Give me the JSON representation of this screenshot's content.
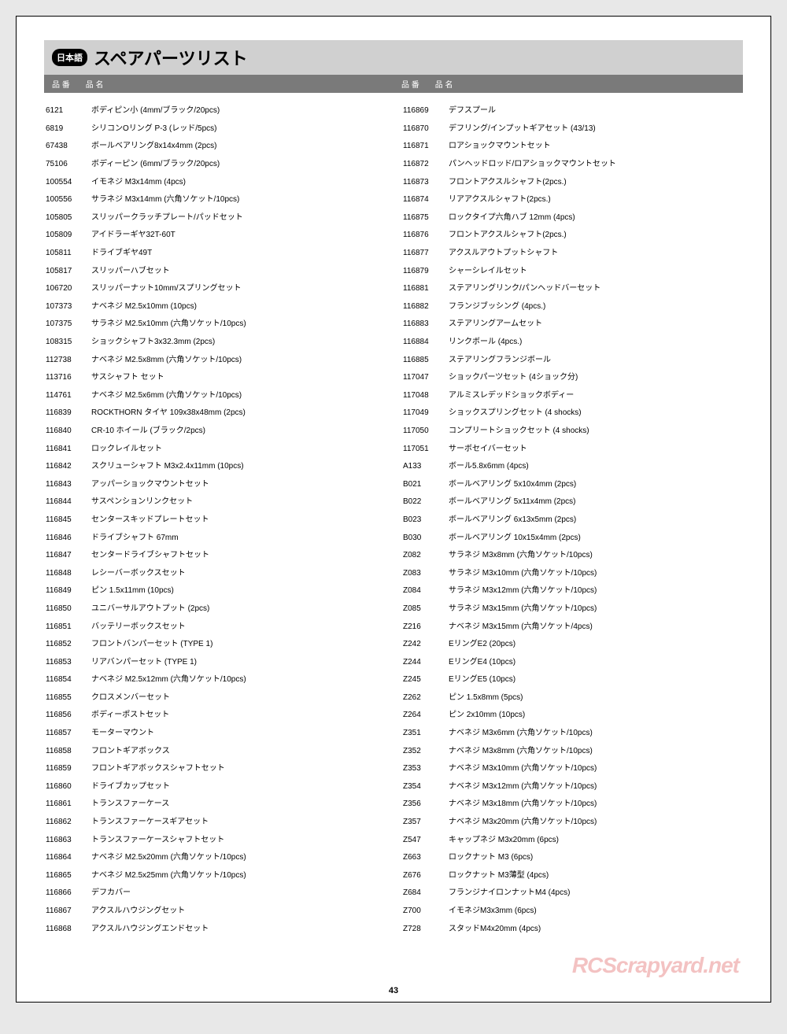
{
  "page": {
    "background_color": "#e8e8e8",
    "paper_color": "#ffffff",
    "title_bg": "#d0d0d0",
    "header_bg": "#7a7a7a",
    "text_color": "#000000",
    "header_text_color": "#ffffff",
    "font_family": "Hiragino Kaku Gothic Pro",
    "title_fontsize": 22,
    "body_fontsize": 10,
    "page_number": "43",
    "watermark": "RCScrapyard.net",
    "watermark_color": "rgba(220,80,80,0.35)"
  },
  "title": {
    "lang_badge": "日本語",
    "text": "スペアパーツリスト"
  },
  "headers": {
    "num": "品 番",
    "name": "品 名"
  },
  "left_parts": [
    {
      "num": "6121",
      "name": "ボディピン小 (4mm/ブラック/20pcs)"
    },
    {
      "num": "6819",
      "name": "シリコンOリング P-3 (レッド/5pcs)"
    },
    {
      "num": "67438",
      "name": "ボールベアリング8x14x4mm (2pcs)"
    },
    {
      "num": "75106",
      "name": "ボディーピン (6mm/ブラック/20pcs)"
    },
    {
      "num": "100554",
      "name": "イモネジ M3x14mm (4pcs)"
    },
    {
      "num": "100556",
      "name": "サラネジ M3x14mm (六角ソケット/10pcs)"
    },
    {
      "num": "105805",
      "name": "スリッパークラッチプレート/パッドセット"
    },
    {
      "num": "105809",
      "name": "アイドラーギヤ32T-60T"
    },
    {
      "num": "105811",
      "name": "ドライブギヤ49T"
    },
    {
      "num": "105817",
      "name": "スリッパーハブセット"
    },
    {
      "num": "106720",
      "name": "スリッパーナット10mm/スプリングセット"
    },
    {
      "num": "107373",
      "name": "ナベネジ M2.5x10mm (10pcs)"
    },
    {
      "num": "107375",
      "name": "サラネジ M2.5x10mm (六角ソケット/10pcs)"
    },
    {
      "num": "108315",
      "name": "ショックシャフト3x32.3mm (2pcs)"
    },
    {
      "num": "112738",
      "name": "ナベネジ M2.5x8mm (六角ソケット/10pcs)"
    },
    {
      "num": "113716",
      "name": "サスシャフト セット"
    },
    {
      "num": "114761",
      "name": "ナベネジ M2.5x6mm (六角ソケット/10pcs)"
    },
    {
      "num": "116839",
      "name": "ROCKTHORN タイヤ 109x38x48mm (2pcs)"
    },
    {
      "num": "116840",
      "name": "CR-10 ホイール (ブラック/2pcs)"
    },
    {
      "num": "116841",
      "name": "ロックレイルセット"
    },
    {
      "num": "116842",
      "name": "スクリューシャフト M3x2.4x11mm (10pcs)"
    },
    {
      "num": "116843",
      "name": "アッパーショックマウントセット"
    },
    {
      "num": "116844",
      "name": "サスペンションリンクセット"
    },
    {
      "num": "116845",
      "name": "センタースキッドプレートセット"
    },
    {
      "num": "116846",
      "name": "ドライブシャフト 67mm"
    },
    {
      "num": "116847",
      "name": "センタードライブシャフトセット"
    },
    {
      "num": "116848",
      "name": "レシーバーボックスセット"
    },
    {
      "num": "116849",
      "name": "ピン 1.5x11mm (10pcs)"
    },
    {
      "num": "116850",
      "name": "ユニバーサルアウトプット (2pcs)"
    },
    {
      "num": "116851",
      "name": "バッテリーボックスセット"
    },
    {
      "num": "116852",
      "name": "フロントバンパーセット (TYPE 1)"
    },
    {
      "num": "116853",
      "name": "リアバンパーセット (TYPE 1)"
    },
    {
      "num": "116854",
      "name": "ナベネジ M2.5x12mm (六角ソケット/10pcs)"
    },
    {
      "num": "116855",
      "name": "クロスメンバーセット"
    },
    {
      "num": "116856",
      "name": "ボディーポストセット"
    },
    {
      "num": "116857",
      "name": "モーターマウント"
    },
    {
      "num": "116858",
      "name": "フロントギアボックス"
    },
    {
      "num": "116859",
      "name": "フロントギアボックスシャフトセット"
    },
    {
      "num": "116860",
      "name": "ドライブカップセット"
    },
    {
      "num": "116861",
      "name": "トランスファーケース"
    },
    {
      "num": "116862",
      "name": "トランスファーケースギアセット"
    },
    {
      "num": "116863",
      "name": "トランスファーケースシャフトセット"
    },
    {
      "num": "116864",
      "name": "ナベネジ M2.5x20mm (六角ソケット/10pcs)"
    },
    {
      "num": "116865",
      "name": "ナベネジ M2.5x25mm (六角ソケット/10pcs)"
    },
    {
      "num": "116866",
      "name": "デフカバー"
    },
    {
      "num": "116867",
      "name": "アクスルハウジングセット"
    },
    {
      "num": "116868",
      "name": "アクスルハウジングエンドセット"
    }
  ],
  "right_parts": [
    {
      "num": "116869",
      "name": "デフスプール"
    },
    {
      "num": "116870",
      "name": "デフリング/インプットギアセット (43/13)"
    },
    {
      "num": "116871",
      "name": "ロアショックマウントセット"
    },
    {
      "num": "116872",
      "name": "パンヘッドロッド/ロアショックマウントセット"
    },
    {
      "num": "116873",
      "name": "フロントアクスルシャフト(2pcs.)"
    },
    {
      "num": "116874",
      "name": "リアアクスルシャフト(2pcs.)"
    },
    {
      "num": "116875",
      "name": "ロックタイプ六角ハブ 12mm (4pcs)"
    },
    {
      "num": "116876",
      "name": "フロントアクスルシャフト(2pcs.)"
    },
    {
      "num": "116877",
      "name": "アクスルアウトプットシャフト"
    },
    {
      "num": "116879",
      "name": "シャーシレイルセット"
    },
    {
      "num": "116881",
      "name": "ステアリングリンク/パンヘッドバーセット"
    },
    {
      "num": "116882",
      "name": "フランジブッシング (4pcs.)"
    },
    {
      "num": "116883",
      "name": "ステアリングアームセット"
    },
    {
      "num": "116884",
      "name": "リンクボール (4pcs.)"
    },
    {
      "num": "116885",
      "name": "ステアリングフランジボール"
    },
    {
      "num": "117047",
      "name": "ショックパーツセット (4ショック分)"
    },
    {
      "num": "117048",
      "name": "アルミスレデッドショックボディー"
    },
    {
      "num": "117049",
      "name": "ショックスプリングセット (4 shocks)"
    },
    {
      "num": "117050",
      "name": "コンプリートショックセット (4 shocks)"
    },
    {
      "num": "117051",
      "name": "サーボセイバーセット"
    },
    {
      "num": "A133",
      "name": "ボール5.8x6mm (4pcs)"
    },
    {
      "num": "B021",
      "name": "ボールベアリング 5x10x4mm (2pcs)"
    },
    {
      "num": "B022",
      "name": "ボールベアリング 5x11x4mm (2pcs)"
    },
    {
      "num": "B023",
      "name": "ボールベアリング 6x13x5mm (2pcs)"
    },
    {
      "num": "B030",
      "name": "ボールベアリング 10x15x4mm (2pcs)"
    },
    {
      "num": "Z082",
      "name": "サラネジ M3x8mm (六角ソケット/10pcs)"
    },
    {
      "num": "Z083",
      "name": "サラネジ M3x10mm (六角ソケット/10pcs)"
    },
    {
      "num": "Z084",
      "name": "サラネジ M3x12mm (六角ソケット/10pcs)"
    },
    {
      "num": "Z085",
      "name": "サラネジ M3x15mm (六角ソケット/10pcs)"
    },
    {
      "num": "Z216",
      "name": "ナベネジ M3x15mm (六角ソケット/4pcs)"
    },
    {
      "num": "Z242",
      "name": "EリングE2 (20pcs)"
    },
    {
      "num": "Z244",
      "name": "EリングE4 (10pcs)"
    },
    {
      "num": "Z245",
      "name": "EリングE5 (10pcs)"
    },
    {
      "num": "Z262",
      "name": "ピン 1.5x8mm (5pcs)"
    },
    {
      "num": "Z264",
      "name": "ピン 2x10mm (10pcs)"
    },
    {
      "num": "Z351",
      "name": "ナベネジ M3x6mm (六角ソケット/10pcs)"
    },
    {
      "num": "Z352",
      "name": "ナベネジ M3x8mm (六角ソケット/10pcs)"
    },
    {
      "num": "Z353",
      "name": "ナベネジ M3x10mm (六角ソケット/10pcs)"
    },
    {
      "num": "Z354",
      "name": "ナベネジ M3x12mm (六角ソケット/10pcs)"
    },
    {
      "num": "Z356",
      "name": "ナベネジ M3x18mm (六角ソケット/10pcs)"
    },
    {
      "num": "Z357",
      "name": "ナベネジ M3x20mm (六角ソケット/10pcs)"
    },
    {
      "num": "Z547",
      "name": "キャップネジ M3x20mm (6pcs)"
    },
    {
      "num": "Z663",
      "name": "ロックナット M3 (6pcs)"
    },
    {
      "num": "Z676",
      "name": "ロックナット M3薄型 (4pcs)"
    },
    {
      "num": "Z684",
      "name": "フランジナイロンナットM4 (4pcs)"
    },
    {
      "num": "Z700",
      "name": "イモネジM3x3mm (6pcs)"
    },
    {
      "num": "Z728",
      "name": "スタッドM4x20mm (4pcs)"
    }
  ]
}
